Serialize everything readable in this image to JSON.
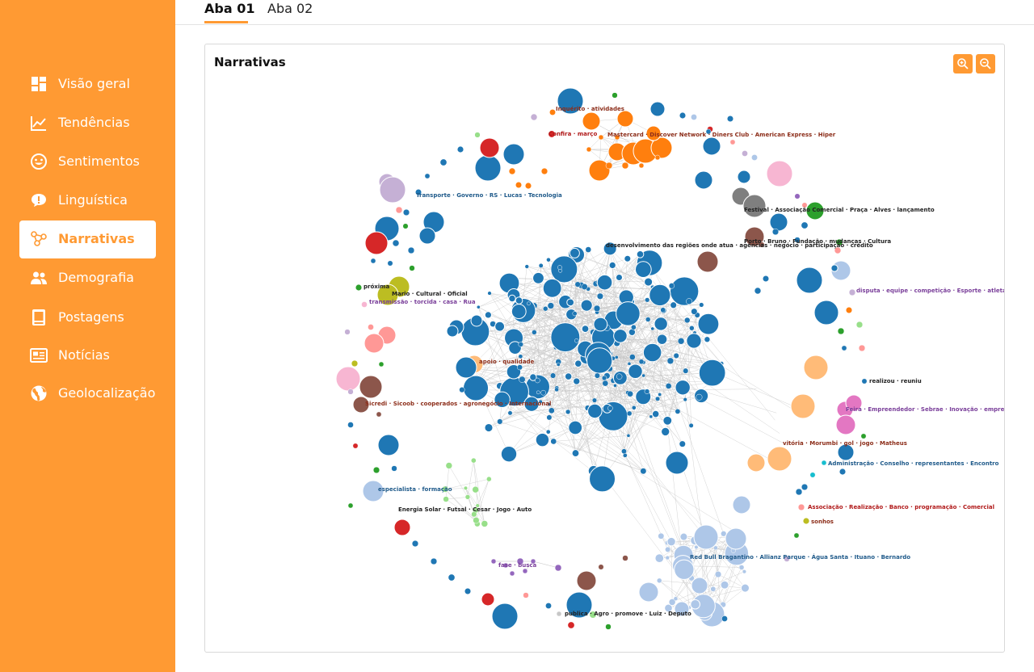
{
  "sidebar": {
    "items": [
      {
        "label": "Visão geral",
        "icon": "dashboard-icon"
      },
      {
        "label": "Tendências",
        "icon": "line-chart-icon"
      },
      {
        "label": "Sentimentos",
        "icon": "smiley-icon"
      },
      {
        "label": "Linguística",
        "icon": "speech-bubble-icon"
      },
      {
        "label": "Narrativas",
        "icon": "network-icon"
      },
      {
        "label": "Demografia",
        "icon": "people-icon"
      },
      {
        "label": "Postagens",
        "icon": "document-icon"
      },
      {
        "label": "Notícias",
        "icon": "newspaper-icon"
      },
      {
        "label": "Geolocalização",
        "icon": "globe-icon"
      }
    ],
    "active": "Narrativas"
  },
  "tabs": [
    {
      "label": "Aba 01"
    },
    {
      "label": "Aba 02"
    }
  ],
  "active_tab": "Aba 01",
  "card": {
    "title": "Narrativas",
    "zoom_in_icon": "zoom-in-icon",
    "zoom_out_icon": "zoom-out-icon"
  },
  "colors": {
    "accent": "#ff9a33",
    "blue": "#1f77b4",
    "orange": "#ff7f0e",
    "light_blue": "#aec7e8",
    "light_orange": "#ffbb78",
    "red": "#d62728",
    "green": "#2ca02c",
    "light_green": "#98df8a",
    "purple": "#9467bd",
    "lilac": "#c5b0d5",
    "brown": "#8c564b",
    "pink": "#f7b6d2",
    "magenta": "#e377c2",
    "gray": "#7f7f7f",
    "salmon": "#ff9896",
    "olive": "#bcbd22",
    "cyan": "#17becf"
  },
  "graph_labels": [
    {
      "text": "Inquérito · atividades",
      "color": "brown"
    },
    {
      "text": "Confira · março",
      "color": "red"
    },
    {
      "text": "Mastercard · Discover Network · Diners Club · American Express · Hiper",
      "color": "brown"
    },
    {
      "text": "Transporte · Governo · RS · Lucas · Tecnologia",
      "color": "blue"
    },
    {
      "text": "Festival · Associação Comercial · Praça · Alves · lançamento",
      "color": "dark"
    },
    {
      "text": "desenvolvimento das regiões onde atua · agências · negócio · participação · crédito",
      "color": "dark"
    },
    {
      "text": "Porto · Bruno · Fundação · mudanças · Cultura",
      "color": "dark"
    },
    {
      "text": "próxima",
      "color": "dark"
    },
    {
      "text": "Mario · Cultural · Oficial",
      "color": "dark"
    },
    {
      "text": "transmissão · torcida · casa · Rua",
      "color": "purple"
    },
    {
      "text": "disputa · equipe · competição · Esporte · atletas",
      "color": "purple"
    },
    {
      "text": "apoio · qualidade",
      "color": "brown"
    },
    {
      "text": "realizou · reuniu",
      "color": "dark"
    },
    {
      "text": "Sicredi · Sicoob · cooperados · agronegócio · Internacional",
      "color": "brown"
    },
    {
      "text": "Feira · Empreendedor · Sebrae · Inovação · empresários",
      "color": "purple"
    },
    {
      "text": "vitória · Morumbi · gol · jogo · Matheus",
      "color": "brown"
    },
    {
      "text": "Administração · Conselho · representantes · Encontro",
      "color": "blue"
    },
    {
      "text": "especialista · formação",
      "color": "blue"
    },
    {
      "text": "Energia Solar · Futsal · Cesar · Jogo · Auto",
      "color": "dark"
    },
    {
      "text": "Associação · Realização · Banco · programação · Comercial",
      "color": "red"
    },
    {
      "text": "sonhos",
      "color": "brown"
    },
    {
      "text": "Red Bull Bragantino · Allianz Parque · Água Santa · Ituano · Bernardo",
      "color": "blue"
    },
    {
      "text": "fase · busca",
      "color": "purple"
    },
    {
      "text": "publica · Agro · promove · Luiz · Deputo",
      "color": "dark"
    }
  ]
}
